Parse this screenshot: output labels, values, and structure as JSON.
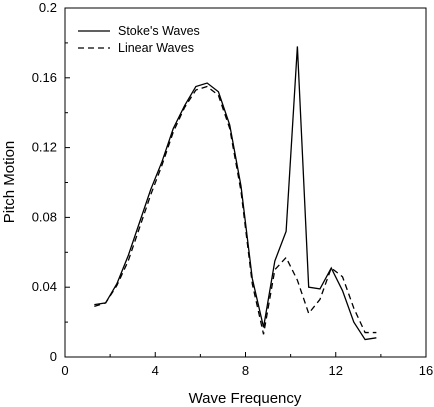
{
  "chart_data": {
    "type": "line",
    "title": "",
    "xlabel": "Wave Frequency",
    "ylabel": "Pitch Motion",
    "xlim": [
      0,
      16
    ],
    "ylim": [
      0,
      0.2
    ],
    "xticks": [
      0,
      4,
      8,
      12,
      16
    ],
    "yticks": [
      0,
      0.04,
      0.08,
      0.12,
      0.16,
      0.2
    ],
    "xtick_labels": [
      "0",
      "4",
      "8",
      "12",
      "16"
    ],
    "ytick_labels": [
      "0",
      "0.04",
      "0.08",
      "0.12",
      "0.16",
      "0.2"
    ],
    "grid": false,
    "legend_position": "top-left",
    "series": [
      {
        "name": "Stoke's Waves",
        "style": "solid",
        "color": "#000000",
        "x": [
          1.3,
          1.8,
          2.3,
          2.8,
          3.3,
          3.8,
          4.3,
          4.8,
          5.3,
          5.8,
          6.3,
          6.8,
          7.3,
          7.8,
          8.3,
          8.8,
          9.3,
          9.8,
          10.3,
          10.8,
          11.3,
          11.8,
          12.3,
          12.8,
          13.3,
          13.8
        ],
        "y": [
          0.03,
          0.031,
          0.042,
          0.058,
          0.077,
          0.096,
          0.112,
          0.131,
          0.144,
          0.155,
          0.157,
          0.152,
          0.133,
          0.098,
          0.045,
          0.017,
          0.055,
          0.072,
          0.178,
          0.04,
          0.039,
          0.051,
          0.038,
          0.02,
          0.01,
          0.011
        ]
      },
      {
        "name": "Linear Waves",
        "style": "dashed",
        "color": "#000000",
        "x": [
          1.3,
          1.8,
          2.3,
          2.8,
          3.3,
          3.8,
          4.3,
          4.8,
          5.3,
          5.8,
          6.3,
          6.8,
          7.3,
          7.8,
          8.3,
          8.8,
          9.3,
          9.8,
          10.3,
          10.8,
          11.3,
          11.8,
          12.3,
          12.8,
          13.3,
          13.8
        ],
        "y": [
          0.029,
          0.031,
          0.041,
          0.055,
          0.074,
          0.093,
          0.11,
          0.129,
          0.143,
          0.153,
          0.155,
          0.15,
          0.131,
          0.095,
          0.042,
          0.013,
          0.05,
          0.057,
          0.044,
          0.025,
          0.033,
          0.051,
          0.046,
          0.028,
          0.014,
          0.014
        ]
      }
    ]
  }
}
